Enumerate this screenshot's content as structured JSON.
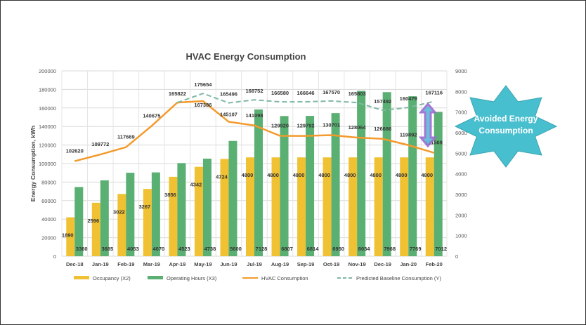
{
  "chart_data": {
    "type": "bar",
    "title": "HVAC Energy Consumption",
    "ylabel": "Energy Consumption, kWh",
    "ylim": [
      0,
      200000
    ],
    "y2lim": [
      0,
      9000
    ],
    "yticks": [
      0,
      20000,
      40000,
      60000,
      80000,
      100000,
      120000,
      140000,
      160000,
      180000,
      200000
    ],
    "y2ticks": [
      0,
      1000,
      2000,
      3000,
      4000,
      5000,
      6000,
      7000,
      8000,
      9000
    ],
    "grid": true,
    "legend_position": "bottom",
    "categories": [
      "Dec-18",
      "Jan-19",
      "Feb-19",
      "Mar-19",
      "Apr-19",
      "May-19",
      "Jun-19",
      "Jul-19",
      "Aug-19",
      "Sep-19",
      "Oct-19",
      "Nov-19",
      "Dec-19",
      "Jan-20",
      "Feb-20"
    ],
    "series": [
      {
        "name": "Occupancy (X2)",
        "type": "bar",
        "axis": "right",
        "color": "#f0c233",
        "values": [
          1890,
          2596,
          3022,
          3267,
          3856,
          4342,
          4724,
          4800,
          4800,
          4800,
          4800,
          4800,
          4800,
          4800,
          4800
        ]
      },
      {
        "name": "Operating Hours (X3)",
        "type": "bar",
        "axis": "right",
        "color": "#5aaf72",
        "values": [
          3360,
          3685,
          4053,
          4070,
          4523,
          4738,
          5600,
          7128,
          6807,
          6814,
          6950,
          8034,
          7968,
          7769,
          7012
        ]
      },
      {
        "name": "HVAC Consumption",
        "type": "line",
        "axis": "left",
        "color": "#f39a2b",
        "values": [
          102620,
          109772,
          117669,
          140675,
          165822,
          167386,
          145107,
          141098,
          129920,
          129792,
          130701,
          128064,
          126686,
          119892,
          111569
        ]
      },
      {
        "name": "Predicted Baseline Consumption (Y)",
        "type": "line",
        "dashed": true,
        "axis": "left",
        "color": "#7fb8a3",
        "values": [
          null,
          null,
          null,
          null,
          165822,
          175654,
          165496,
          168752,
          166580,
          166646,
          167570,
          165803,
          157492,
          160479,
          167116
        ]
      }
    ],
    "annotation": "Avoided Energy Consumption",
    "annotation_color": "#48bfcf"
  }
}
